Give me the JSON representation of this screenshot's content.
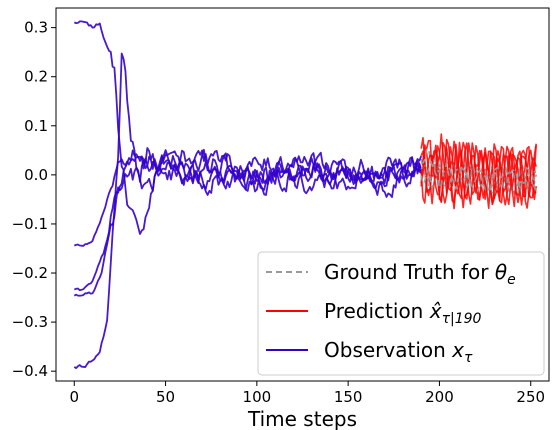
{
  "chart_data": {
    "type": "line",
    "xlabel": "Time steps",
    "ylabel": "",
    "title": "",
    "xlim": [
      -10,
      260
    ],
    "ylim": [
      -0.42,
      0.34
    ],
    "xticks": [
      0,
      50,
      100,
      150,
      200,
      250
    ],
    "yticks": [
      -0.4,
      -0.3,
      -0.2,
      -0.1,
      0.0,
      0.1,
      0.2,
      0.3
    ],
    "ytick_labels": [
      "−0.4",
      "−0.3",
      "−0.2",
      "−0.1",
      "0.0",
      "0.1",
      "0.2",
      "0.3"
    ],
    "grid": false,
    "legend_position": "lower-right",
    "colors": {
      "ground_truth": "#999999",
      "prediction": "#ff0000",
      "observation": "#3300cc"
    },
    "prediction_start": 190,
    "x_end": 253,
    "legend": [
      {
        "key": "ground_truth",
        "label": "Ground Truth for ",
        "math": "θ",
        "sub": "e"
      },
      {
        "key": "prediction",
        "label": "Prediction ",
        "math": "x̂",
        "sub": "τ|190"
      },
      {
        "key": "observation",
        "label": "Observation ",
        "math": "x",
        "sub": "τ"
      }
    ],
    "series": [
      {
        "observation_anchors": [
          [
            0,
            0.31
          ],
          [
            5,
            0.31
          ],
          [
            10,
            0.3
          ],
          [
            14,
            0.31
          ],
          [
            18,
            0.26
          ],
          [
            22,
            0.22
          ],
          [
            25,
            0.05
          ],
          [
            30,
            -0.06
          ],
          [
            35,
            -0.13
          ],
          [
            40,
            -0.07
          ],
          [
            45,
            0.0
          ],
          [
            50,
            0.02
          ],
          [
            60,
            0.0
          ],
          [
            80,
            0.01
          ],
          [
            100,
            0.0
          ],
          [
            130,
            0.02
          ],
          [
            160,
            -0.01
          ],
          [
            185,
            0.03
          ],
          [
            190,
            0.02
          ]
        ],
        "prediction_amp": 0.045,
        "gt_amp": 0.02
      },
      {
        "observation_anchors": [
          [
            0,
            -0.39
          ],
          [
            6,
            -0.39
          ],
          [
            9,
            -0.38
          ],
          [
            14,
            -0.36
          ],
          [
            18,
            -0.3
          ],
          [
            21,
            -0.13
          ],
          [
            24,
            0.02
          ],
          [
            26,
            0.23
          ],
          [
            28,
            0.22
          ],
          [
            31,
            0.05
          ],
          [
            36,
            -0.01
          ],
          [
            40,
            0.04
          ],
          [
            50,
            0.03
          ],
          [
            70,
            -0.02
          ],
          [
            100,
            0.01
          ],
          [
            130,
            -0.03
          ],
          [
            160,
            0.02
          ],
          [
            190,
            0.0
          ]
        ],
        "prediction_amp": 0.055,
        "gt_amp": 0.025
      },
      {
        "observation_anchors": [
          [
            0,
            -0.145
          ],
          [
            5,
            -0.145
          ],
          [
            10,
            -0.13
          ],
          [
            14,
            -0.1
          ],
          [
            18,
            -0.05
          ],
          [
            23,
            0.02
          ],
          [
            28,
            0.05
          ],
          [
            35,
            0.03
          ],
          [
            50,
            0.0
          ],
          [
            80,
            0.03
          ],
          [
            110,
            -0.01
          ],
          [
            140,
            0.02
          ],
          [
            170,
            -0.02
          ],
          [
            190,
            0.01
          ]
        ],
        "prediction_amp": 0.05,
        "gt_amp": 0.02
      },
      {
        "observation_anchors": [
          [
            0,
            -0.235
          ],
          [
            5,
            -0.235
          ],
          [
            10,
            -0.22
          ],
          [
            16,
            -0.16
          ],
          [
            22,
            -0.07
          ],
          [
            27,
            0.0
          ],
          [
            32,
            0.04
          ],
          [
            40,
            0.02
          ],
          [
            60,
            0.04
          ],
          [
            90,
            0.01
          ],
          [
            120,
            0.03
          ],
          [
            150,
            -0.02
          ],
          [
            180,
            0.02
          ],
          [
            190,
            0.03
          ]
        ],
        "prediction_amp": 0.045,
        "gt_amp": 0.02
      },
      {
        "observation_anchors": [
          [
            0,
            -0.245
          ],
          [
            5,
            -0.245
          ],
          [
            10,
            -0.24
          ],
          [
            15,
            -0.2
          ],
          [
            20,
            -0.1
          ],
          [
            25,
            -0.02
          ],
          [
            30,
            0.01
          ],
          [
            40,
            -0.03
          ],
          [
            50,
            0.02
          ],
          [
            70,
            0.0
          ],
          [
            100,
            -0.02
          ],
          [
            130,
            0.01
          ],
          [
            160,
            0.0
          ],
          [
            190,
            -0.01
          ]
        ],
        "prediction_amp": 0.05,
        "gt_amp": 0.02
      }
    ]
  }
}
